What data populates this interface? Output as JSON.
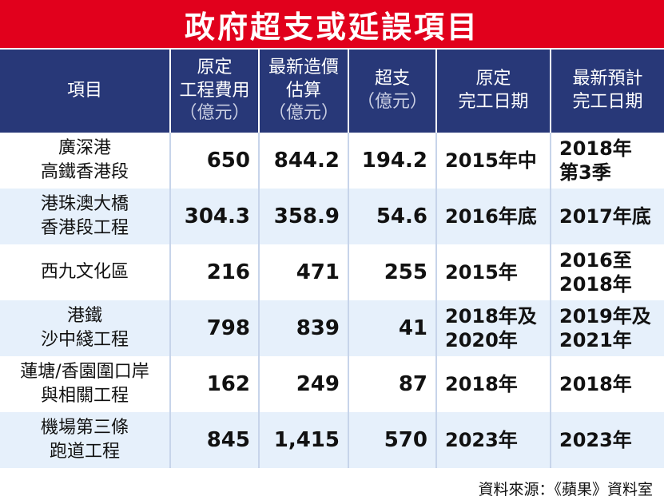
{
  "title": "政府超支或延誤項目",
  "header": {
    "project": "項目",
    "orig_cost": [
      "原定",
      "工程費用",
      "（億元）"
    ],
    "latest_cost": [
      "最新造價",
      "估算",
      "（億元）"
    ],
    "overrun": [
      "超支",
      "（億元）"
    ],
    "orig_date": [
      "原定",
      "完工日期"
    ],
    "latest_date": [
      "最新預計",
      "完工日期"
    ]
  },
  "rows": [
    {
      "name": [
        "廣深港",
        "高鐵香港段"
      ],
      "orig_cost": "650",
      "latest_cost": "844.2",
      "overrun": "194.2",
      "orig_date": [
        "2015年中"
      ],
      "latest_date": [
        "2018年",
        "第3季"
      ]
    },
    {
      "name": [
        "港珠澳大橋",
        "香港段工程"
      ],
      "orig_cost": "304.3",
      "latest_cost": "358.9",
      "overrun": "54.6",
      "orig_date": [
        "2016年底"
      ],
      "latest_date": [
        "2017年底"
      ]
    },
    {
      "name": [
        "西九文化區"
      ],
      "orig_cost": "216",
      "latest_cost": "471",
      "overrun": "255",
      "orig_date": [
        "2015年"
      ],
      "latest_date": [
        "2016至",
        "2018年"
      ]
    },
    {
      "name": [
        "港鐵",
        "沙中綫工程"
      ],
      "orig_cost": "798",
      "latest_cost": "839",
      "overrun": "41",
      "orig_date": [
        "2018年及",
        "2020年"
      ],
      "latest_date": [
        "2019年及",
        "2021年"
      ]
    },
    {
      "name": [
        "蓮塘/香園圍口岸",
        "與相關工程"
      ],
      "orig_cost": "162",
      "latest_cost": "249",
      "overrun": "87",
      "orig_date": [
        "2018年"
      ],
      "latest_date": [
        "2018年"
      ]
    },
    {
      "name": [
        "機場第三條",
        "跑道工程"
      ],
      "orig_cost": "845",
      "latest_cost": "1,415",
      "overrun": "570",
      "orig_date": [
        "2023年"
      ],
      "latest_date": [
        "2023年"
      ]
    }
  ],
  "source": "資料來源：《蘋果》資料室",
  "colors": {
    "title_bg": "#e1001c",
    "header_bg": "#283878",
    "row_alt_bg": "#e6f0fb"
  }
}
